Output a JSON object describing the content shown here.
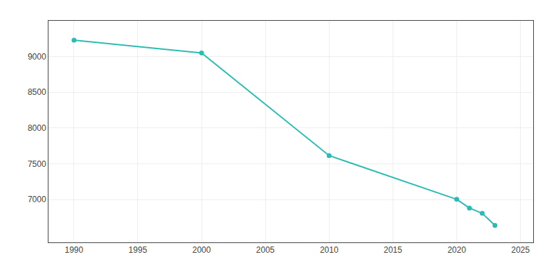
{
  "chart_data": {
    "type": "line",
    "x": [
      1990,
      2000,
      2010,
      2020,
      2021,
      2022,
      2023
    ],
    "values": [
      9229,
      9050,
      7614,
      7002,
      6880,
      6807,
      6638
    ],
    "color": "#2abcb4",
    "marker": "circle",
    "line_style": "solid",
    "xlim": [
      1988,
      2026
    ],
    "ylim": [
      6400,
      9500
    ],
    "xticks": [
      1990,
      1995,
      2000,
      2005,
      2010,
      2015,
      2020,
      2025
    ],
    "yticks": [
      7000,
      7500,
      8000,
      8500,
      9000
    ],
    "grid": true
  }
}
